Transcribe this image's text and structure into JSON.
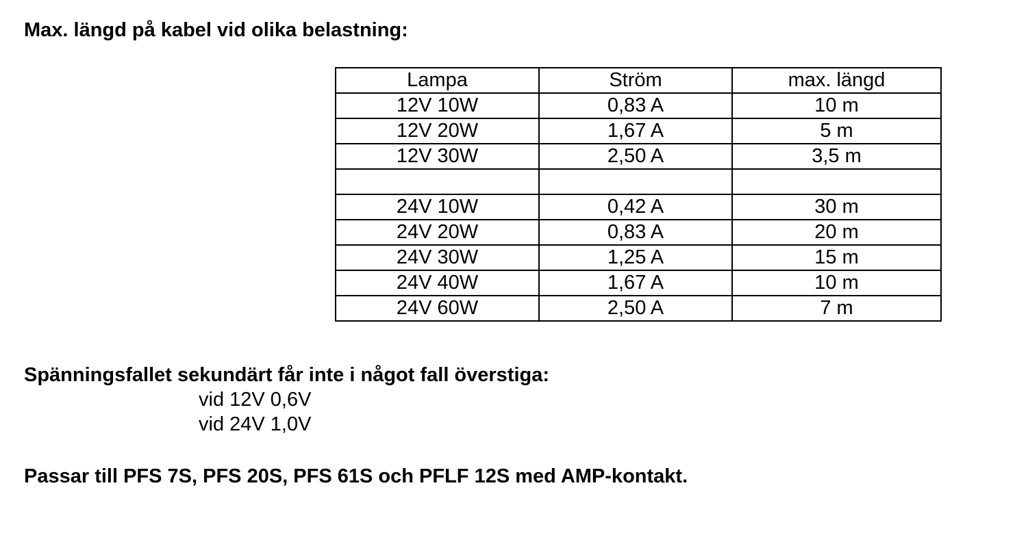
{
  "title": "Max. längd på kabel vid olika belastning:",
  "table": {
    "headers": [
      "Lampa",
      "Ström",
      "max. längd"
    ],
    "rows": [
      [
        "12V 10W",
        "0,83 A",
        "10 m"
      ],
      [
        "12V 20W",
        "1,67 A",
        "5 m"
      ],
      [
        "12V 30W",
        "2,50 A",
        "3,5 m"
      ],
      [
        "",
        "",
        ""
      ],
      [
        "24V 10W",
        "0,42 A",
        "30 m"
      ],
      [
        "24V 20W",
        "0,83 A",
        "20 m"
      ],
      [
        "24V 30W",
        "1,25 A",
        "15 m"
      ],
      [
        "24V 40W",
        "1,67 A",
        "10 m"
      ],
      [
        "24V 60W",
        "2,50 A",
        "7 m"
      ]
    ]
  },
  "voltage_drop": {
    "heading": "Spänningsfallet sekundärt får inte i något fall överstiga:",
    "lines": [
      "vid 12V 0,6V",
      "vid 24V 1,0V"
    ]
  },
  "compatibility": "Passar till PFS 7S, PFS 20S, PFS 61S och PFLF 12S med AMP-kontakt."
}
